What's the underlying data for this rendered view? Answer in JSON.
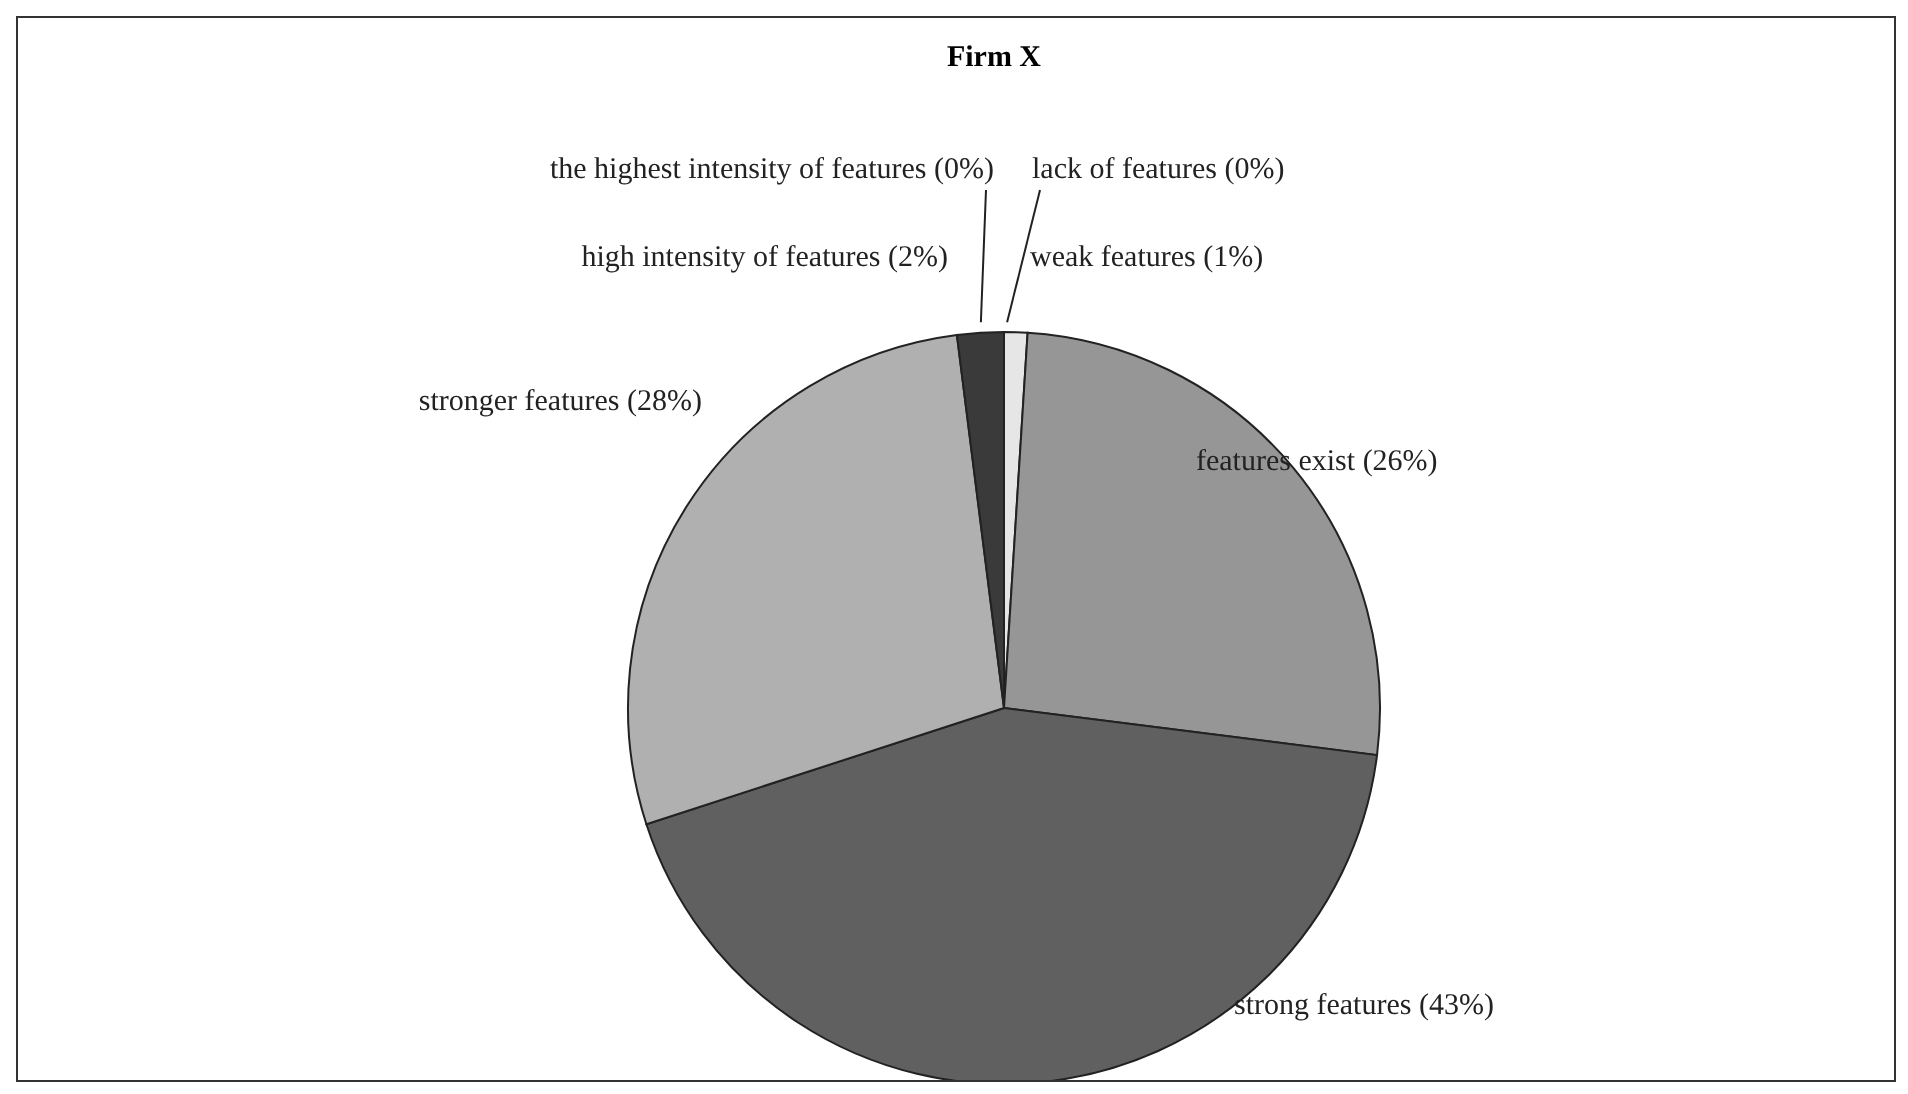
{
  "chart_data": {
    "type": "pie",
    "title": "Firm X",
    "categories": [
      "lack of features",
      "weak features",
      "features exist",
      "strong features",
      "stronger features",
      "high intensity of features",
      "the highest intensity of features"
    ],
    "values": [
      0,
      1,
      26,
      43,
      28,
      2,
      0
    ],
    "colors": [
      "#ffffff",
      "#e6e6e6",
      "#969696",
      "#606060",
      "#b0b0b0",
      "#3a3a3a",
      "#ffffff"
    ],
    "value_labels": [
      "(0%)",
      "(1%)",
      "(26%)",
      "(43%)",
      "(28%)",
      "(2%)",
      "(0%)"
    ],
    "legend": false
  }
}
